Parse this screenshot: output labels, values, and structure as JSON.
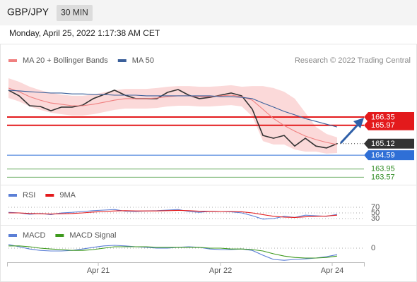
{
  "header": {
    "symbol": "GBP/JPY",
    "interval": "30 MIN",
    "date": "Monday, April 25, 2022 1:17:38 AM CET",
    "credit": "Research © 2022 Trading Central"
  },
  "chart_data": [
    {
      "type": "line",
      "x": [
        0,
        1,
        2,
        3,
        4,
        5,
        6,
        7,
        8,
        9,
        10,
        11,
        12,
        13,
        14,
        15,
        16,
        17,
        18,
        19,
        20,
        21,
        22,
        23,
        24,
        25,
        26,
        27,
        28,
        29,
        30,
        31
      ],
      "xlim": [
        0,
        33.53
      ],
      "ylim": [
        163.29,
        168.76
      ],
      "bands": {
        "color": "#fbd9d9",
        "upper": [
          168.14,
          167.98,
          167.75,
          167.59,
          167.46,
          167.39,
          167.33,
          167.33,
          167.39,
          167.49,
          167.59,
          167.65,
          167.65,
          167.65,
          167.69,
          167.75,
          167.78,
          167.78,
          167.75,
          167.75,
          167.78,
          167.82,
          167.75,
          167.78,
          167.78,
          167.69,
          167.52,
          167.2,
          166.55,
          165.89,
          165.57,
          165.41
        ],
        "lower": [
          167.23,
          167.07,
          166.84,
          166.68,
          166.55,
          166.48,
          166.42,
          166.42,
          166.48,
          166.58,
          166.68,
          166.74,
          166.74,
          166.74,
          166.77,
          166.84,
          166.87,
          166.87,
          166.84,
          166.84,
          166.87,
          166.9,
          166.84,
          166.38,
          165.24,
          165.08,
          165.08,
          164.85,
          164.75,
          164.75,
          164.66,
          164.69
        ]
      },
      "series": [
        {
          "color": "#333333",
          "values": [
            167.59,
            167.33,
            166.87,
            166.84,
            166.64,
            166.81,
            166.81,
            166.9,
            167.2,
            167.39,
            167.59,
            167.36,
            167.2,
            167.2,
            167.2,
            167.49,
            167.62,
            167.36,
            167.2,
            167.26,
            167.36,
            167.46,
            167.33,
            166.71,
            165.5,
            165.37,
            165.5,
            165.01,
            165.37,
            165.01,
            164.92,
            165.12
          ]
        },
        {
          "name": "MA 20 + Bollinger Bands",
          "color": "#f08080",
          "values": [
            167.69,
            167.52,
            167.29,
            167.13,
            167.0,
            166.94,
            166.87,
            166.87,
            166.94,
            167.03,
            167.13,
            167.2,
            167.2,
            167.2,
            167.23,
            167.29,
            167.33,
            167.33,
            167.29,
            167.29,
            167.33,
            167.36,
            167.29,
            167.13,
            166.71,
            166.28,
            165.96,
            165.7,
            165.47,
            165.31,
            165.18,
            165.08
          ]
        },
        {
          "name": "MA 50",
          "color": "#3a5f9a",
          "values": [
            167.59,
            167.56,
            167.52,
            167.49,
            167.46,
            167.46,
            167.42,
            167.42,
            167.39,
            167.39,
            167.36,
            167.36,
            167.36,
            167.33,
            167.33,
            167.33,
            167.33,
            167.33,
            167.33,
            167.33,
            167.29,
            167.29,
            167.26,
            167.2,
            167.0,
            166.81,
            166.61,
            166.45,
            166.28,
            166.15,
            166.02,
            165.89
          ]
        }
      ],
      "levels": [
        {
          "value": 166.35,
          "color": "#e31a1c",
          "style": "box"
        },
        {
          "value": 165.97,
          "color": "#e31a1c",
          "style": "box"
        },
        {
          "value": 165.12,
          "color": "#333333",
          "style": "current"
        },
        {
          "value": 164.59,
          "color": "#2f6fd6",
          "style": "box"
        },
        {
          "value": 163.95,
          "color": "#2e8b22",
          "style": "text"
        },
        {
          "value": 163.57,
          "color": "#2e8b22",
          "style": "text"
        }
      ]
    },
    {
      "type": "line",
      "x": [
        0,
        1,
        2,
        3,
        4,
        5,
        6,
        7,
        8,
        9,
        10,
        11,
        12,
        13,
        14,
        15,
        16,
        17,
        18,
        19,
        20,
        21,
        22,
        23,
        24,
        25,
        26,
        27,
        28,
        29,
        30,
        31
      ],
      "xlim": [
        0,
        33.53
      ],
      "ylim": [
        10,
        92.5
      ],
      "yticks": [
        30,
        50,
        70
      ],
      "series": [
        {
          "name": "RSI",
          "color": "#5b7fd6",
          "values": [
            52,
            50,
            45,
            48,
            44,
            50,
            52,
            55,
            58,
            60,
            62,
            56,
            55,
            57,
            58,
            60,
            62,
            55,
            52,
            56,
            55,
            54,
            50,
            40,
            28,
            30,
            38,
            34,
            42,
            40,
            38,
            45
          ]
        },
        {
          "name": "9MA",
          "color": "#e31a1c",
          "values": [
            50,
            50,
            48,
            47,
            46,
            47,
            48,
            50,
            53,
            55,
            57,
            58,
            57,
            57,
            57,
            58,
            59,
            58,
            56,
            56,
            55,
            55,
            54,
            50,
            44,
            38,
            35,
            34,
            36,
            38,
            39,
            42
          ]
        }
      ]
    },
    {
      "type": "line",
      "x": [
        0,
        1,
        2,
        3,
        4,
        5,
        6,
        7,
        8,
        9,
        10,
        11,
        12,
        13,
        14,
        15,
        16,
        17,
        18,
        19,
        20,
        21,
        22,
        23,
        24,
        25,
        26,
        27,
        28,
        29,
        30,
        31
      ],
      "xlim": [
        0,
        33.53
      ],
      "ylim": [
        -0.5,
        0.3
      ],
      "yticks": [
        0
      ],
      "xticks": [
        {
          "value": 8.47,
          "label": "Apr 21"
        },
        {
          "value": 20,
          "label": "Apr 22"
        },
        {
          "value": 30.53,
          "label": "Apr 24"
        }
      ],
      "series": [
        {
          "name": "MACD",
          "color": "#5b7fd6",
          "values": [
            0.13,
            0.05,
            -0.03,
            -0.08,
            -0.1,
            -0.1,
            -0.08,
            -0.03,
            0.03,
            0.08,
            0.1,
            0.08,
            0.05,
            0.03,
            0,
            0,
            0.03,
            0.05,
            0.03,
            -0.03,
            -0.05,
            -0.05,
            -0.03,
            -0.08,
            -0.25,
            -0.4,
            -0.43,
            -0.4,
            -0.38,
            -0.35,
            -0.3,
            -0.23
          ]
        },
        {
          "name": "MACD Signal",
          "color": "#3f9a1e",
          "values": [
            0.08,
            0.08,
            0.05,
            0,
            -0.03,
            -0.05,
            -0.08,
            -0.08,
            -0.05,
            0,
            0.05,
            0.05,
            0.05,
            0.05,
            0.03,
            0.03,
            0.03,
            0.03,
            0.03,
            0,
            0,
            -0.03,
            -0.03,
            -0.05,
            -0.1,
            -0.2,
            -0.28,
            -0.33,
            -0.35,
            -0.35,
            -0.33,
            -0.28
          ]
        }
      ]
    }
  ]
}
